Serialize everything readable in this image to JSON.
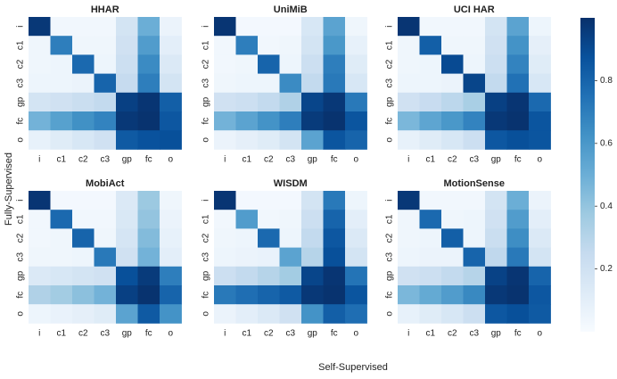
{
  "figure": {
    "xlabel": "Self-Supervised",
    "ylabel": "Fully-Supervised"
  },
  "colorbar": {
    "colormap": "Blues",
    "min": 0.0,
    "max": 1.0,
    "ticks": [
      0.2,
      0.4,
      0.6,
      0.8
    ]
  },
  "chart_data": [
    {
      "type": "heatmap",
      "title": "HHAR",
      "xlabels": [
        "i",
        "c1",
        "c2",
        "c3",
        "gp",
        "fc",
        "o"
      ],
      "ylabels": [
        "i",
        "c1",
        "c2",
        "c3",
        "gp",
        "fc",
        "o"
      ],
      "values": [
        [
          0.97,
          0.03,
          0.03,
          0.03,
          0.18,
          0.5,
          0.06
        ],
        [
          0.04,
          0.7,
          0.04,
          0.04,
          0.2,
          0.58,
          0.1
        ],
        [
          0.04,
          0.05,
          0.78,
          0.05,
          0.22,
          0.65,
          0.14
        ],
        [
          0.05,
          0.05,
          0.06,
          0.8,
          0.25,
          0.7,
          0.18
        ],
        [
          0.18,
          0.2,
          0.23,
          0.26,
          0.94,
          0.98,
          0.82
        ],
        [
          0.48,
          0.56,
          0.63,
          0.68,
          0.97,
          0.99,
          0.85
        ],
        [
          0.08,
          0.12,
          0.16,
          0.2,
          0.84,
          0.87,
          0.88
        ]
      ]
    },
    {
      "type": "heatmap",
      "title": "UniMiB",
      "xlabels": [
        "i",
        "c1",
        "c2",
        "c3",
        "gp",
        "fc",
        "o"
      ],
      "ylabels": [
        "i",
        "c1",
        "c2",
        "c3",
        "gp",
        "fc",
        "o"
      ],
      "values": [
        [
          0.98,
          0.02,
          0.02,
          0.02,
          0.16,
          0.55,
          0.04
        ],
        [
          0.03,
          0.7,
          0.03,
          0.04,
          0.18,
          0.6,
          0.08
        ],
        [
          0.03,
          0.04,
          0.8,
          0.05,
          0.22,
          0.7,
          0.12
        ],
        [
          0.04,
          0.05,
          0.05,
          0.65,
          0.26,
          0.72,
          0.16
        ],
        [
          0.2,
          0.22,
          0.26,
          0.32,
          0.92,
          0.97,
          0.72
        ],
        [
          0.48,
          0.55,
          0.62,
          0.7,
          0.96,
          0.99,
          0.86
        ],
        [
          0.06,
          0.09,
          0.12,
          0.18,
          0.55,
          0.86,
          0.8
        ]
      ]
    },
    {
      "type": "heatmap",
      "title": "UCI HAR",
      "xlabels": [
        "i",
        "c1",
        "c2",
        "c3",
        "gp",
        "fc",
        "o"
      ],
      "ylabels": [
        "i",
        "c1",
        "c2",
        "c3",
        "gp",
        "fc",
        "o"
      ],
      "values": [
        [
          0.98,
          0.03,
          0.03,
          0.03,
          0.18,
          0.55,
          0.05
        ],
        [
          0.04,
          0.82,
          0.04,
          0.04,
          0.2,
          0.62,
          0.09
        ],
        [
          0.04,
          0.05,
          0.9,
          0.05,
          0.22,
          0.68,
          0.12
        ],
        [
          0.05,
          0.05,
          0.06,
          0.92,
          0.26,
          0.75,
          0.16
        ],
        [
          0.2,
          0.24,
          0.28,
          0.34,
          0.94,
          0.98,
          0.78
        ],
        [
          0.46,
          0.54,
          0.6,
          0.68,
          0.97,
          0.99,
          0.86
        ],
        [
          0.08,
          0.12,
          0.16,
          0.22,
          0.85,
          0.88,
          0.86
        ]
      ]
    },
    {
      "type": "heatmap",
      "title": "MobiAct",
      "xlabels": [
        "i",
        "c1",
        "c2",
        "c3",
        "gp",
        "fc",
        "o"
      ],
      "ylabels": [
        "i",
        "c1",
        "c2",
        "c3",
        "gp",
        "fc",
        "o"
      ],
      "values": [
        [
          0.98,
          0.02,
          0.02,
          0.02,
          0.14,
          0.38,
          0.04
        ],
        [
          0.03,
          0.78,
          0.03,
          0.03,
          0.15,
          0.4,
          0.06
        ],
        [
          0.03,
          0.04,
          0.8,
          0.04,
          0.17,
          0.44,
          0.08
        ],
        [
          0.04,
          0.04,
          0.05,
          0.72,
          0.2,
          0.48,
          0.1
        ],
        [
          0.14,
          0.16,
          0.18,
          0.2,
          0.88,
          0.96,
          0.7
        ],
        [
          0.32,
          0.36,
          0.42,
          0.48,
          0.94,
          0.99,
          0.8
        ],
        [
          0.05,
          0.07,
          0.09,
          0.12,
          0.55,
          0.84,
          0.62
        ]
      ]
    },
    {
      "type": "heatmap",
      "title": "WISDM",
      "xlabels": [
        "i",
        "c1",
        "c2",
        "c3",
        "gp",
        "fc",
        "o"
      ],
      "ylabels": [
        "i",
        "c1",
        "c2",
        "c3",
        "gp",
        "fc",
        "o"
      ],
      "values": [
        [
          0.98,
          0.02,
          0.02,
          0.02,
          0.18,
          0.72,
          0.05
        ],
        [
          0.03,
          0.58,
          0.03,
          0.04,
          0.22,
          0.8,
          0.1
        ],
        [
          0.04,
          0.05,
          0.78,
          0.05,
          0.26,
          0.85,
          0.14
        ],
        [
          0.05,
          0.06,
          0.07,
          0.55,
          0.3,
          0.88,
          0.18
        ],
        [
          0.22,
          0.26,
          0.3,
          0.36,
          0.92,
          0.98,
          0.74
        ],
        [
          0.72,
          0.76,
          0.8,
          0.84,
          0.97,
          0.99,
          0.86
        ],
        [
          0.06,
          0.1,
          0.14,
          0.2,
          0.62,
          0.82,
          0.76
        ]
      ]
    },
    {
      "type": "heatmap",
      "title": "MotionSense",
      "xlabels": [
        "i",
        "c1",
        "c2",
        "c3",
        "gp",
        "fc",
        "o"
      ],
      "ylabels": [
        "i",
        "c1",
        "c2",
        "c3",
        "gp",
        "fc",
        "o"
      ],
      "values": [
        [
          0.97,
          0.03,
          0.03,
          0.03,
          0.18,
          0.5,
          0.06
        ],
        [
          0.04,
          0.78,
          0.04,
          0.05,
          0.2,
          0.58,
          0.1
        ],
        [
          0.04,
          0.05,
          0.82,
          0.05,
          0.23,
          0.64,
          0.14
        ],
        [
          0.05,
          0.06,
          0.06,
          0.8,
          0.27,
          0.72,
          0.18
        ],
        [
          0.2,
          0.22,
          0.26,
          0.3,
          0.93,
          0.98,
          0.8
        ],
        [
          0.46,
          0.52,
          0.58,
          0.66,
          0.97,
          0.99,
          0.85
        ],
        [
          0.08,
          0.12,
          0.16,
          0.22,
          0.85,
          0.88,
          0.84
        ]
      ]
    }
  ]
}
